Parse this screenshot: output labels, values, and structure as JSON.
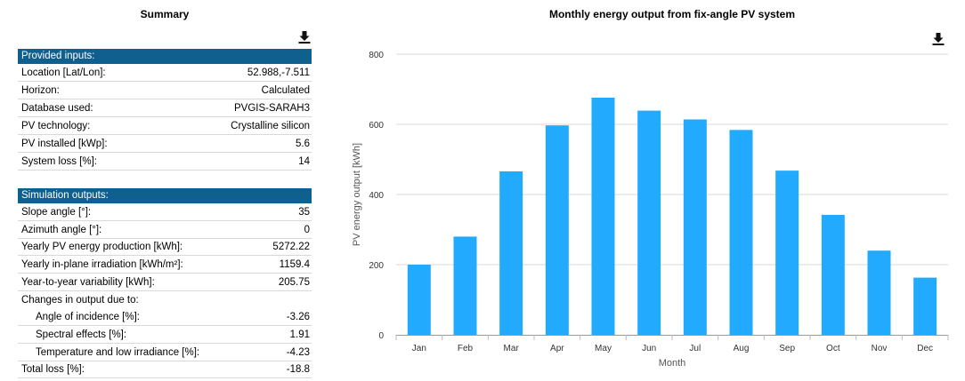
{
  "summary": {
    "title": "Summary",
    "inputs_header": "Provided inputs:",
    "inputs": [
      {
        "label": "Location [Lat/Lon]:",
        "value": "52.988,-7.511"
      },
      {
        "label": "Horizon:",
        "value": "Calculated"
      },
      {
        "label": "Database used:",
        "value": "PVGIS-SARAH3"
      },
      {
        "label": "PV technology:",
        "value": "Crystalline silicon"
      },
      {
        "label": "PV installed [kWp]:",
        "value": "5.6"
      },
      {
        "label": "System loss [%]:",
        "value": "14"
      }
    ],
    "outputs_header": "Simulation outputs:",
    "outputs": [
      {
        "label": "Slope angle [°]:",
        "value": "35"
      },
      {
        "label": "Azimuth angle [°]:",
        "value": "0"
      },
      {
        "label": "Yearly PV energy production [kWh]:",
        "value": "5272.22"
      },
      {
        "label": "Yearly in-plane irradiation [kWh/m²]:",
        "value": "1159.4"
      },
      {
        "label": "Year-to-year variability [kWh]:",
        "value": "205.75"
      },
      {
        "label": "Changes in output due to:",
        "value": ""
      },
      {
        "label": "Angle of incidence [%]:",
        "value": "-3.26"
      },
      {
        "label": "Spectral effects [%]:",
        "value": "1.91"
      },
      {
        "label": "Temperature and low irradiance [%]:",
        "value": "-4.23"
      },
      {
        "label": "Total loss [%]:",
        "value": "-18.8"
      }
    ]
  },
  "chart_data": {
    "type": "bar",
    "title": "Monthly energy output from fix-angle PV system",
    "xlabel": "Month",
    "ylabel": "PV energy output [kWh]",
    "categories": [
      "Jan",
      "Feb",
      "Mar",
      "Apr",
      "May",
      "Jun",
      "Jul",
      "Aug",
      "Sep",
      "Oct",
      "Nov",
      "Dec"
    ],
    "values": [
      200,
      280,
      466,
      597,
      676,
      639,
      614,
      584,
      468,
      342,
      240,
      163
    ],
    "ylim": [
      0,
      800
    ],
    "yticks": [
      0,
      200,
      400,
      600,
      800
    ],
    "bar_color": "#22aaff",
    "grid": true
  },
  "icons": {
    "summary_download": "download-icon",
    "chart_download": "download-icon"
  }
}
